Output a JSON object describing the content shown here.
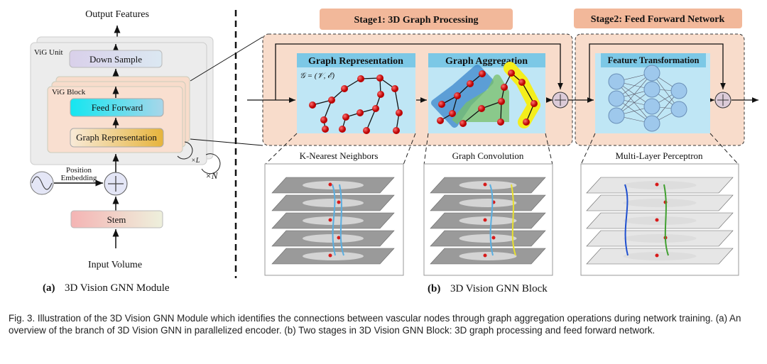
{
  "figure": {
    "module": {
      "output_label": "Output Features",
      "unit_label": "ViG Unit",
      "down_sample": "Down Sample",
      "block_label": "ViG Block",
      "feed_forward": "Feed Forward",
      "graph_representation": "Graph Representation",
      "repeat_l": "×L",
      "repeat_n": "×N",
      "position_embedding_line1": "Position",
      "position_embedding_line2": "Embedding",
      "stem": "Stem",
      "input_label": "Input Volume",
      "subcaption_tag": "(a)",
      "subcaption": "3D Vision GNN Module"
    },
    "block": {
      "stage1_title": "Stage1:  3D Graph Processing",
      "stage2_title": "Stage2:  Feed Forward Network",
      "graph_rep_title": "Graph Representation",
      "graph_formula": "𝒢 = (𝒱, ℰ)",
      "graph_agg_title": "Graph Aggregation",
      "feature_transform_title": "Feature Transformation",
      "knn_label": "K-Nearest Neighbors",
      "gconv_label": "Graph Convolution",
      "mlp_label": "Multi-Layer Perceptron",
      "subcaption_tag": "(b)",
      "subcaption": "3D Vision GNN Block"
    },
    "colors": {
      "stage_fill": "#f8dccb",
      "stage_label": "#f2b89a",
      "panel": "#bfe6f5",
      "panel_header": "#7cc8e6",
      "node": "#d81a1a",
      "agg_blue": "#3b86cc",
      "agg_green": "#79c068",
      "agg_yellow": "#f4ee1c"
    }
  },
  "caption": "Fig. 3.   Illustration of the 3D Vision GNN Module which identifies the connections between vascular nodes through graph aggregation operations during network training. (a) An overview of the branch of 3D Vision GNN in parallelized encoder. (b) Two stages in 3D Vision GNN Block: 3D graph processing and feed forward network."
}
